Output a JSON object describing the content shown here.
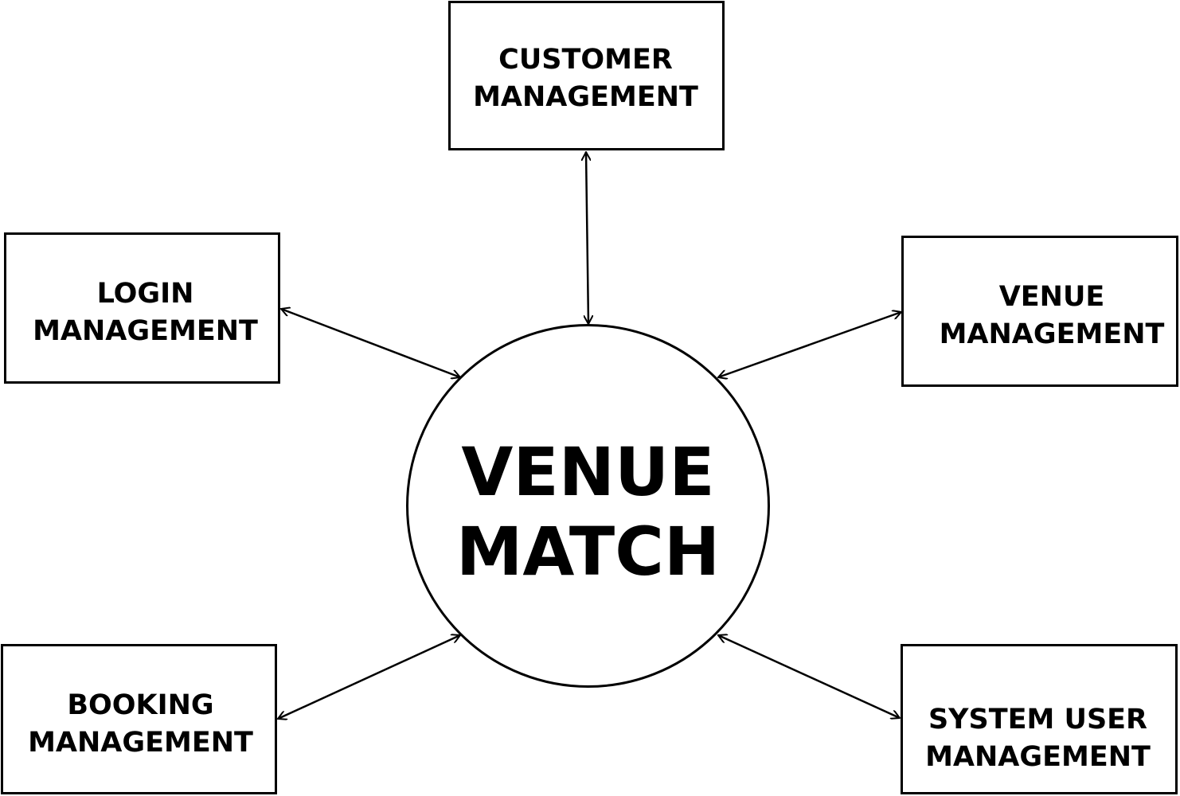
{
  "diagram": {
    "center": {
      "label": "VENUE\nMATCH"
    },
    "modules": {
      "customer": "CUSTOMER\nMANAGEMENT",
      "login": "LOGIN\nMANAGEMENT",
      "venue": "VENUE\nMANAGEMENT",
      "booking": "BOOKING\nMANAGEMENT",
      "system_user": "SYSTEM USER\nMANAGEMENT"
    },
    "connections": [
      {
        "from": "center",
        "to": "customer",
        "direction": "bidirectional"
      },
      {
        "from": "center",
        "to": "login",
        "direction": "bidirectional"
      },
      {
        "from": "center",
        "to": "venue",
        "direction": "bidirectional"
      },
      {
        "from": "center",
        "to": "booking",
        "direction": "bidirectional"
      },
      {
        "from": "center",
        "to": "system_user",
        "direction": "bidirectional"
      }
    ],
    "colors": {
      "stroke": "#000000",
      "background": "#ffffff"
    }
  }
}
